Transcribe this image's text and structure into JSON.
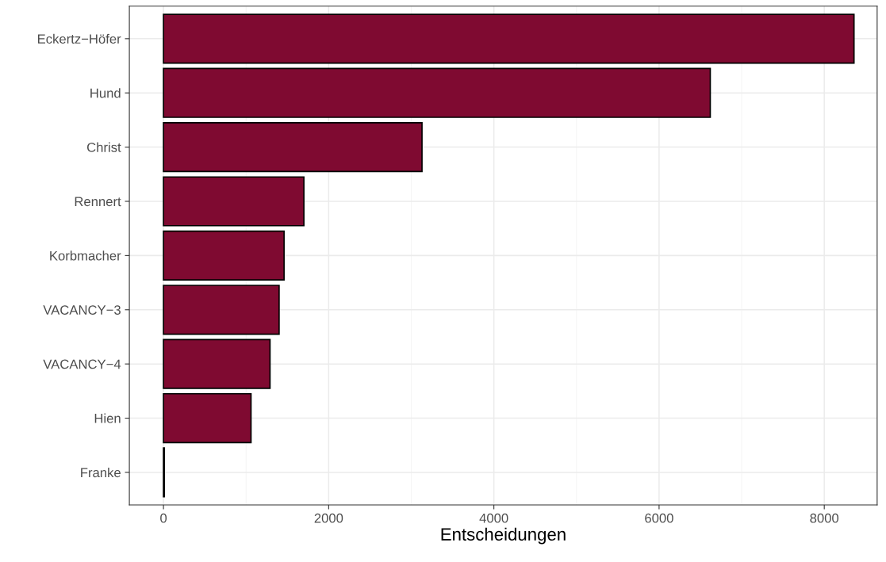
{
  "chart_data": {
    "type": "bar",
    "orientation": "horizontal",
    "xlabel": "Entscheidungen",
    "categories": [
      "Eckertz−Höfer",
      "Hund",
      "Christ",
      "Rennert",
      "Korbmacher",
      "VACANCY−3",
      "VACANCY−4",
      "Hien",
      "Franke"
    ],
    "values": [
      8360,
      6620,
      3130,
      1700,
      1460,
      1400,
      1290,
      1060,
      10
    ],
    "color": "#7f0a31",
    "xlim": [
      -413,
      8640
    ],
    "xticks": [
      0,
      2000,
      4000,
      6000,
      8000
    ],
    "grid": true
  }
}
